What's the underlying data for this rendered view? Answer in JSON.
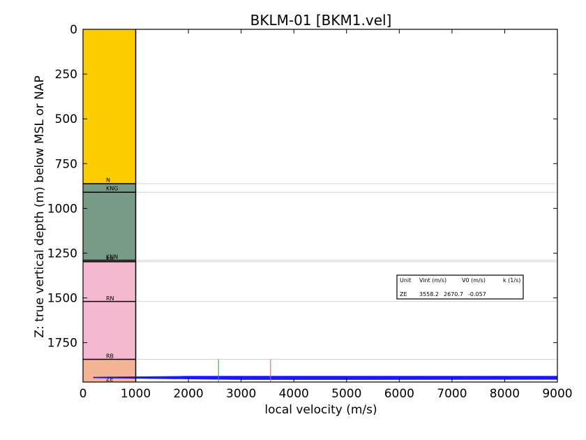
{
  "chart_data": {
    "type": "area",
    "title": "BKLM-01 [BKM1.vel]",
    "xlabel": "local velocity (m/s)",
    "ylabel": "Z: true vertical depth (m) below MSL or NAP",
    "xlim": [
      0,
      9000
    ],
    "ylim": [
      1970,
      0
    ],
    "xticks": [
      0,
      1000,
      2000,
      3000,
      4000,
      5000,
      6000,
      7000,
      8000,
      9000
    ],
    "yticks": [
      0,
      250,
      500,
      750,
      1000,
      1250,
      1500,
      1750
    ],
    "grid": false,
    "intervals": [
      {
        "name": "",
        "top": 0,
        "base": 862,
        "color": "#fbcd00"
      },
      {
        "name": "N",
        "top": 862,
        "base": 910,
        "color": "#789b87"
      },
      {
        "name": "KNG",
        "top": 910,
        "base": 1290,
        "color": "#789b87"
      },
      {
        "name": "KNN",
        "top": 1290,
        "base": 1298,
        "color": "#789b87"
      },
      {
        "name": "RN",
        "top": 1298,
        "base": 1520,
        "color": "#f4b8d1"
      },
      {
        "name": "RN",
        "top": 1520,
        "base": 1843,
        "color": "#f4b8d1"
      },
      {
        "name": "RB",
        "top": 1843,
        "base": 1970,
        "color": "#f5b496"
      },
      {
        "name": "ZE",
        "top": 1970,
        "base": 1970,
        "color": "#f5b496"
      }
    ],
    "zone_labels": [
      {
        "text": "N",
        "depth": 840
      },
      {
        "text": "KNG",
        "depth": 888
      },
      {
        "text": "KNN",
        "depth": 1270
      },
      {
        "text": "KN",
        "depth": 1282
      },
      {
        "text": "RN",
        "depth": 1502
      },
      {
        "text": "RB",
        "depth": 1823
      },
      {
        "text": "ZE",
        "depth": 1952
      }
    ],
    "formation_tops": [
      862,
      910,
      1290,
      1298,
      1520,
      1843
    ],
    "markers": [
      {
        "x": 2570,
        "y0": 1843,
        "y1": 1970,
        "color": "#2e9e2e"
      },
      {
        "x": 3558,
        "y0": 1843,
        "y1": 1970,
        "color": "#e05a6a"
      }
    ],
    "velocity_trace": {
      "color": "#0000ff",
      "points": [
        {
          "x": 200,
          "y": 1943
        },
        {
          "x": 2000,
          "y": 1938
        },
        {
          "x": 9000,
          "y": 1938
        },
        {
          "x": 9000,
          "y": 1955
        },
        {
          "x": 3000,
          "y": 1956
        },
        {
          "x": 200,
          "y": 1946
        }
      ]
    },
    "table": {
      "headers": [
        "Unit",
        "Vint (m/s)",
        "V0 (m/s)",
        "k (1/s)"
      ],
      "rows": [
        [
          "ZE",
          "3558.2",
          "2670.7",
          "-0.057"
        ]
      ]
    }
  }
}
